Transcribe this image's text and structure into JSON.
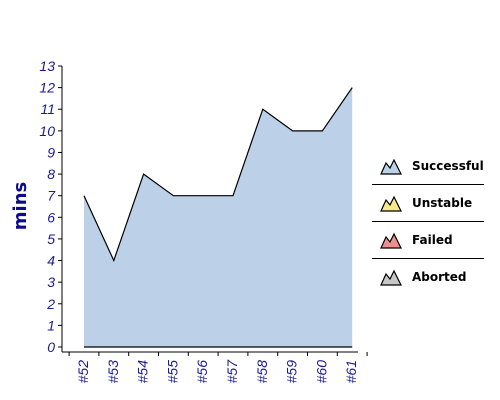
{
  "chart_data": {
    "type": "area",
    "ylabel": "mins",
    "xlabel": "",
    "title": "",
    "categories": [
      "#52",
      "#53",
      "#54",
      "#55",
      "#56",
      "#57",
      "#58",
      "#59",
      "#60",
      "#61"
    ],
    "ylim": [
      0,
      13
    ],
    "yticks": [
      0,
      1,
      2,
      3,
      4,
      5,
      6,
      7,
      8,
      9,
      10,
      11,
      12,
      13
    ],
    "grid": false,
    "legend_placement": "right",
    "series": [
      {
        "name": "Successful",
        "values": [
          7,
          4,
          8,
          7,
          7,
          7,
          11,
          10,
          10,
          12
        ],
        "color": "#bcd1e8"
      },
      {
        "name": "Unstable",
        "values": [
          0,
          0,
          0,
          0,
          0,
          0,
          0,
          0,
          0,
          0
        ],
        "color": "#f7e98c"
      },
      {
        "name": "Failed",
        "values": [
          0,
          0,
          0,
          0,
          0,
          0,
          0,
          0,
          0,
          0
        ],
        "color": "#ee8f8f"
      },
      {
        "name": "Aborted",
        "values": [
          0,
          0,
          0,
          0,
          0,
          0,
          0,
          0,
          0,
          0
        ],
        "color": "#c8c8c8"
      }
    ]
  },
  "legend": {
    "items": [
      {
        "label": "Successful",
        "color": "#bcd1e8",
        "icon": "successful-area-icon"
      },
      {
        "label": "Unstable",
        "color": "#f7e98c",
        "icon": "unstable-area-icon"
      },
      {
        "label": "Failed",
        "color": "#ee8f8f",
        "icon": "failed-area-icon"
      },
      {
        "label": "Aborted",
        "color": "#c8c8c8",
        "icon": "aborted-area-icon"
      }
    ]
  }
}
